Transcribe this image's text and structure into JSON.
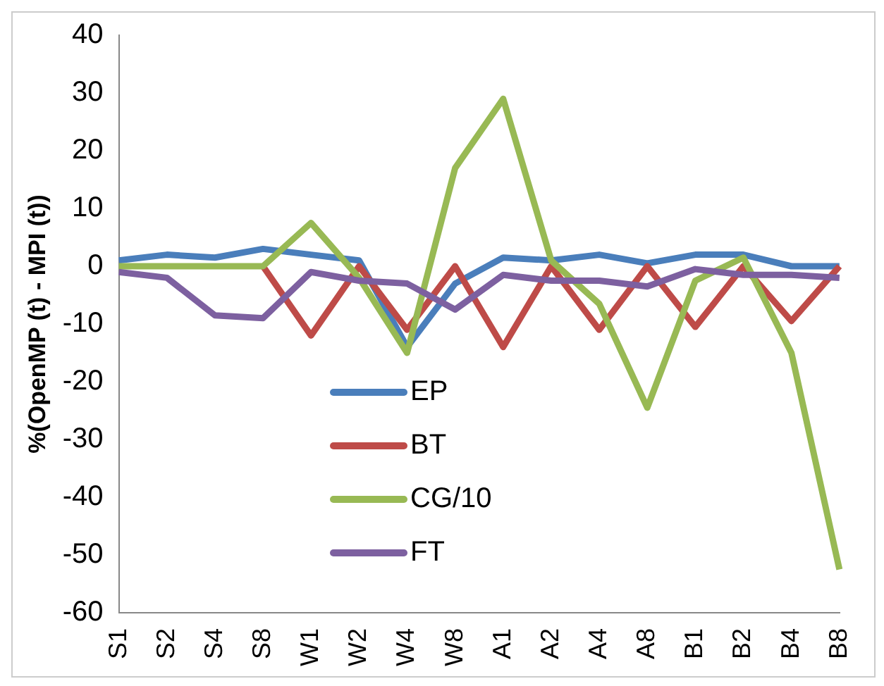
{
  "chart_data": {
    "type": "line",
    "ylabel": "%(OpenMP (t) - MPI (t))",
    "categories": [
      "S1",
      "S2",
      "S4",
      "S8",
      "W1",
      "W2",
      "W4",
      "W8",
      "A1",
      "A2",
      "A4",
      "A8",
      "B1",
      "B2",
      "B4",
      "B8"
    ],
    "series": [
      {
        "name": "EP",
        "color": "#4a7ebb",
        "values": [
          1,
          2,
          1.5,
          3,
          2,
          1,
          -14,
          -3,
          1.5,
          1,
          2,
          0.5,
          2,
          2,
          0,
          0
        ]
      },
      {
        "name": "BT",
        "color": "#be4b48",
        "values": [
          null,
          null,
          null,
          0,
          -12,
          0,
          -11,
          0,
          -14,
          0,
          -11,
          0,
          -10.5,
          0,
          -9.5,
          0
        ]
      },
      {
        "name": "CG/10",
        "color": "#98b954",
        "values": [
          0,
          0,
          0,
          0,
          7.5,
          -2,
          -15,
          17,
          29,
          1,
          -6.5,
          -24.5,
          -2.5,
          1.5,
          -15,
          -52.5
        ]
      },
      {
        "name": "FT",
        "color": "#7d60a0",
        "values": [
          -1,
          -2,
          -8.5,
          -9,
          -1,
          -2.5,
          -3,
          -7.5,
          -1.5,
          -2.5,
          -2.5,
          -3.5,
          -0.5,
          -1.5,
          -1.5,
          -2
        ]
      }
    ],
    "ylim": [
      -60,
      40
    ],
    "yticks": [
      -60,
      -50,
      -40,
      -30,
      -20,
      -10,
      0,
      10,
      20,
      30,
      40
    ],
    "grid": false,
    "legend": "bottom left",
    "marker": "none"
  }
}
